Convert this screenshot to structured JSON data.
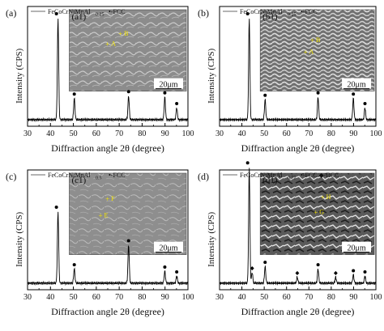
{
  "chart_data": [
    {
      "type": "line",
      "panel_label": "(a)",
      "inset_label": "(a1)",
      "legend": {
        "line_main": "FeCoCrNiMnAl",
        "line_sub": "0.25",
        "marker": "•-FCC"
      },
      "inset_points": [
        "B",
        "A"
      ],
      "scalebar": "20μm",
      "xlabel": "Diffraction angle 2θ (degree)",
      "ylabel": "Intensity (CPS)",
      "xlim": [
        30,
        100
      ],
      "x_ticks": [
        "30",
        "40",
        "50",
        "60",
        "70",
        "80",
        "90",
        "100"
      ],
      "baseline": 0.055,
      "peaks": [
        {
          "x": 43.3,
          "intensity": 0.85,
          "phase": "FCC"
        },
        {
          "x": 50.4,
          "intensity": 0.18,
          "phase": "FCC"
        },
        {
          "x": 74.1,
          "intensity": 0.2,
          "phase": "FCC"
        },
        {
          "x": 89.9,
          "intensity": 0.19,
          "phase": "FCC"
        },
        {
          "x": 95.1,
          "intensity": 0.1,
          "phase": "FCC"
        }
      ]
    },
    {
      "type": "line",
      "panel_label": "(b)",
      "inset_label": "(b1)",
      "legend": {
        "line_main": "FeCoCrNiMnAl",
        "line_sub": "0.25",
        "marker": "•-FCC"
      },
      "inset_points": [
        "B",
        "A"
      ],
      "scalebar": "20μm",
      "xlabel": "Diffraction angle 2θ (degree)",
      "ylabel": "Intensity (CPS)",
      "xlim": [
        30,
        100
      ],
      "x_ticks": [
        "30",
        "40",
        "50",
        "60",
        "70",
        "80",
        "90",
        "100"
      ],
      "baseline": 0.055,
      "peaks": [
        {
          "x": 43.3,
          "intensity": 0.85,
          "phase": "FCC"
        },
        {
          "x": 50.4,
          "intensity": 0.17,
          "phase": "FCC"
        },
        {
          "x": 74.1,
          "intensity": 0.19,
          "phase": "FCC"
        },
        {
          "x": 89.9,
          "intensity": 0.18,
          "phase": "FCC"
        },
        {
          "x": 95.1,
          "intensity": 0.1,
          "phase": "FCC"
        }
      ]
    },
    {
      "type": "line",
      "panel_label": "(c)",
      "inset_label": "(c1)",
      "legend": {
        "line_main": "FeCoCrNiMnAl",
        "line_sub": "0.5",
        "marker": "•-FCC"
      },
      "inset_points": [
        "F",
        "E"
      ],
      "scalebar": "20μm",
      "xlabel": "Diffraction angle 2θ (degree)",
      "ylabel": "Intensity (CPS)",
      "xlim": [
        30,
        100
      ],
      "x_ticks": [
        "30",
        "40",
        "50",
        "60",
        "70",
        "80",
        "90",
        "100"
      ],
      "baseline": 0.055,
      "peaks": [
        {
          "x": 43.3,
          "intensity": 0.6,
          "phase": "FCC"
        },
        {
          "x": 50.4,
          "intensity": 0.12,
          "phase": "FCC"
        },
        {
          "x": 74.1,
          "intensity": 0.32,
          "phase": "FCC"
        },
        {
          "x": 89.9,
          "intensity": 0.1,
          "phase": "FCC"
        },
        {
          "x": 95.1,
          "intensity": 0.06,
          "phase": "FCC"
        }
      ]
    },
    {
      "type": "line",
      "panel_label": "(d)",
      "inset_label": "(d1)",
      "legend": {
        "line_main": "FeCoCrNiMnAl",
        "line_sub": "0.75",
        "marker": "•-FCC  ◆-BCC"
      },
      "inset_points": [
        "H",
        "G"
      ],
      "scalebar": "20μm",
      "xlabel": "Diffraction angle 2θ (degree)",
      "ylabel": "Intensity (CPS)",
      "xlim": [
        30,
        100
      ],
      "x_ticks": [
        "30",
        "40",
        "50",
        "60",
        "70",
        "80",
        "90",
        "100"
      ],
      "baseline": 0.055,
      "peaks": [
        {
          "x": 43.3,
          "intensity": 0.97,
          "phase": "FCC"
        },
        {
          "x": 44.6,
          "intensity": 0.09,
          "phase": "BCC"
        },
        {
          "x": 50.4,
          "intensity": 0.14,
          "phase": "FCC"
        },
        {
          "x": 64.8,
          "intensity": 0.05,
          "phase": "BCC"
        },
        {
          "x": 74.1,
          "intensity": 0.12,
          "phase": "FCC"
        },
        {
          "x": 82.0,
          "intensity": 0.05,
          "phase": "BCC"
        },
        {
          "x": 89.9,
          "intensity": 0.07,
          "phase": "FCC"
        },
        {
          "x": 95.1,
          "intensity": 0.06,
          "phase": "FCC"
        }
      ]
    }
  ]
}
